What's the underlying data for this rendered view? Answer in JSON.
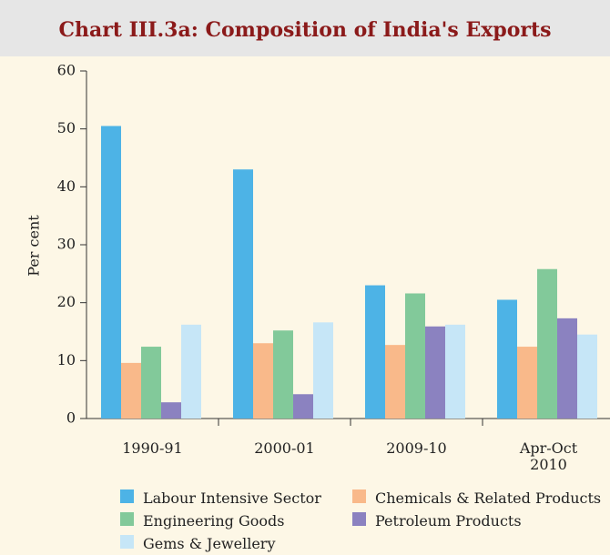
{
  "chart_data": {
    "type": "bar",
    "title": "Chart III.3a: Composition of India's Exports",
    "y_label": "Per cent",
    "categories": [
      "1990-91",
      "2000-01",
      "2009-10",
      "Apr-Oct\n2010"
    ],
    "series": [
      {
        "name": "Labour Intensive Sector",
        "color": "#4db3e6",
        "values": [
          50.5,
          43,
          23,
          20.5
        ]
      },
      {
        "name": "Chemicals & Related Products",
        "color": "#f9b98a",
        "values": [
          9.6,
          13,
          12.7,
          12.4
        ]
      },
      {
        "name": "Engineering Goods",
        "color": "#82c99a",
        "values": [
          12.4,
          15.2,
          21.6,
          25.8
        ]
      },
      {
        "name": "Petroleum Products",
        "color": "#8b82c0",
        "values": [
          2.8,
          4.2,
          15.9,
          17.3
        ]
      },
      {
        "name": "Gems & Jewellery",
        "color": "#c6e6f7",
        "values": [
          16.2,
          16.6,
          16.2,
          14.5
        ]
      }
    ],
    "ylim": [
      0,
      60
    ],
    "yticks": [
      0,
      10,
      20,
      30,
      40,
      50,
      60
    ],
    "legend": "bottom"
  }
}
